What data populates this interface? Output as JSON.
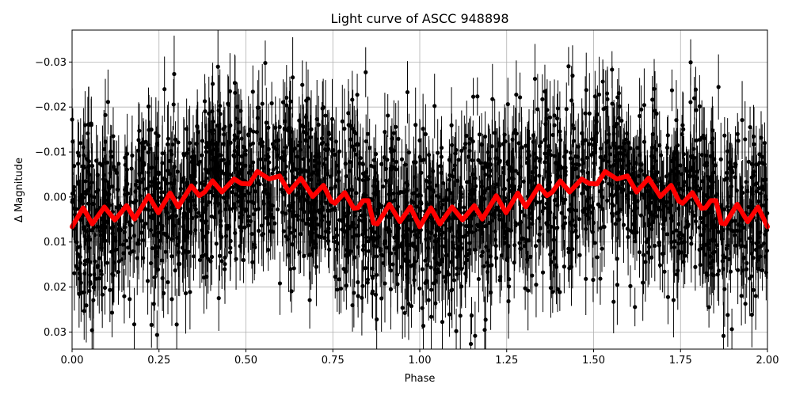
{
  "chart_data": {
    "type": "scatter",
    "title": "Light curve of ASCC 948898",
    "xlabel": "Phase",
    "ylabel": "Δ Magnitude",
    "xlim": [
      0.0,
      2.0
    ],
    "ylim": [
      0.0338,
      -0.0371
    ],
    "y_inverted": true,
    "grid": true,
    "xticks": [
      "0.00",
      "0.25",
      "0.50",
      "0.75",
      "1.00",
      "1.25",
      "1.50",
      "1.75",
      "2.00"
    ],
    "xtick_values": [
      0,
      0.25,
      0.5,
      0.75,
      1.0,
      1.25,
      1.5,
      1.75,
      2.0
    ],
    "yticks": [
      "−0.03",
      "−0.02",
      "−0.01",
      "0.00",
      "0.01",
      "0.02",
      "0.03"
    ],
    "ytick_values": [
      -0.03,
      -0.02,
      -0.01,
      0.0,
      0.01,
      0.02,
      0.03
    ],
    "colors": {
      "points": "#000000",
      "model": "#ff0000",
      "grid": "#b0b0b0"
    },
    "series": [
      {
        "kind": "points-with-errorbars",
        "color": "#000000"
      },
      {
        "kind": "model-line",
        "color": "#ff0000",
        "period": 1.0,
        "x": [
          0.0,
          0.032,
          0.058,
          0.093,
          0.123,
          0.157,
          0.18,
          0.22,
          0.248,
          0.282,
          0.305,
          0.343,
          0.366,
          0.381,
          0.404,
          0.431,
          0.466,
          0.487,
          0.51,
          0.533,
          0.567,
          0.597,
          0.624,
          0.658,
          0.692,
          0.723,
          0.745,
          0.756,
          0.784,
          0.81,
          0.822,
          0.837,
          0.852,
          0.867,
          0.878,
          0.913,
          0.943,
          0.973,
          1.0
        ],
        "y": [
          0.0066,
          0.0024,
          0.006,
          0.0022,
          0.0051,
          0.0019,
          0.0049,
          -0.0003,
          0.0035,
          -0.0009,
          0.0022,
          -0.0025,
          -0.0003,
          -0.0011,
          -0.0036,
          -0.0011,
          -0.004,
          -0.003,
          -0.0029,
          -0.0057,
          -0.004,
          -0.0047,
          -0.0011,
          -0.0042,
          -0.0001,
          -0.0026,
          0.0009,
          0.0014,
          -0.001,
          0.0025,
          0.0024,
          0.0008,
          0.0008,
          0.0058,
          0.006,
          0.0016,
          0.0055,
          0.0022,
          0.0066
        ]
      }
    ]
  }
}
